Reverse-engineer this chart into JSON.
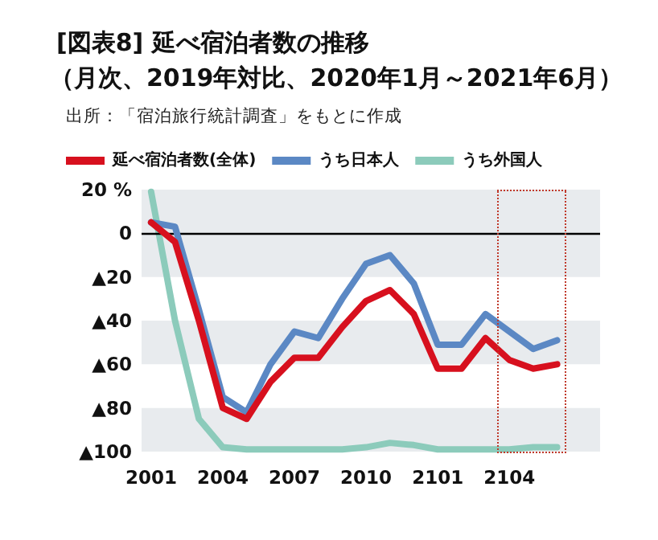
{
  "chart_data": {
    "type": "line",
    "title": "[図表8] 延べ宿泊者数の推移",
    "subtitle": "（月次、2019年対比、2020年1月～2021年6月）",
    "annotations": [
      "出所：「宿泊旅行統計調査」をもとに作成"
    ],
    "categories": [
      "2001",
      null,
      null,
      "2004",
      null,
      null,
      "2007",
      null,
      null,
      "2010",
      null,
      null,
      "2101",
      null,
      null,
      "2104",
      null,
      null
    ],
    "ylim": [
      -100,
      20
    ],
    "yticks": [
      {
        "value": -100,
        "label": "▲100"
      },
      {
        "value": -80,
        "label": "▲80"
      },
      {
        "value": -60,
        "label": "▲60"
      },
      {
        "value": -40,
        "label": "▲40"
      },
      {
        "value": -20,
        "label": "▲20"
      },
      0,
      {
        "value": 20,
        "label": "20 %"
      }
    ],
    "series": [
      {
        "name": "延べ宿泊者数(全体)",
        "color": "#d7101e",
        "values": [
          5,
          -4,
          -40,
          -80,
          -85,
          -68,
          -57,
          -57,
          -43,
          -31,
          -26,
          -37,
          -62,
          -62,
          -48,
          -58,
          -62,
          -60
        ]
      },
      {
        "name": "うち日本人",
        "color": "#5b88c4",
        "values": [
          5,
          3,
          -35,
          -75,
          -82,
          -60,
          -45,
          -48,
          -30,
          -14,
          -10,
          -23,
          -51,
          -51,
          -37,
          -45,
          -53,
          -49
        ]
      },
      {
        "name": "うち外国人",
        "color": "#8ccbbb",
        "values": [
          19,
          -40,
          -85,
          -98,
          -99,
          -99,
          -99,
          -99,
          -99,
          -98,
          -96,
          -97,
          -99,
          -99,
          -99,
          -99,
          -98,
          -98
        ]
      }
    ],
    "ref_lines": [
      {
        "axis": "y",
        "value": 0,
        "color": "#000000"
      }
    ],
    "bands": [
      {
        "axis": "y",
        "from": -100,
        "to": -80,
        "color": "#e8ebee"
      },
      {
        "axis": "y",
        "from": -60,
        "to": -40,
        "color": "#e8ebee"
      },
      {
        "axis": "y",
        "from": -20,
        "to": 20,
        "color": "#e8ebee"
      }
    ],
    "legend": "top left",
    "marker": "none",
    "line_style": "solid"
  }
}
